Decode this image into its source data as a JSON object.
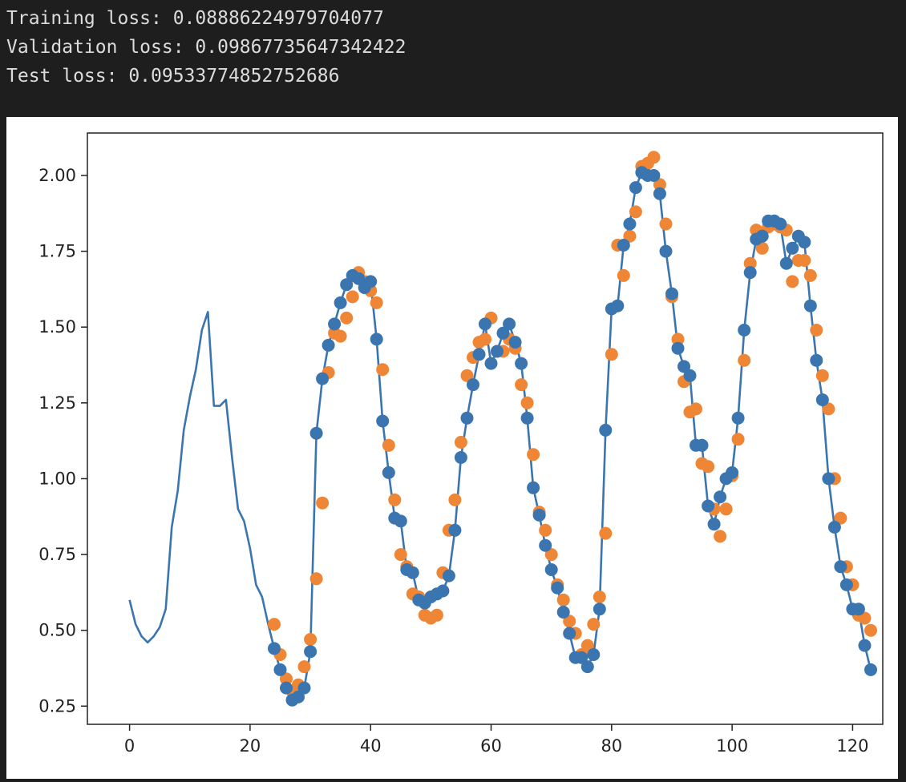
{
  "console": {
    "lines": [
      "Training loss: 0.08886224979704077",
      "Validation loss: 0.09867735647342422",
      "Test loss: 0.09533774852752686"
    ]
  },
  "chart_data": {
    "type": "line",
    "title": "",
    "xlabel": "",
    "ylabel": "",
    "xlim": [
      -7,
      125
    ],
    "ylim": [
      0.19,
      2.14
    ],
    "xticks": [
      0,
      20,
      40,
      60,
      80,
      100,
      120
    ],
    "yticks": [
      0.25,
      0.5,
      0.75,
      1.0,
      1.25,
      1.5,
      1.75,
      2.0
    ],
    "ytick_labels": [
      "0.25",
      "0.50",
      "0.75",
      "1.00",
      "1.25",
      "1.50",
      "1.75",
      "2.00"
    ],
    "grid": false,
    "colors": {
      "blue": "#3b75af",
      "orange": "#ef8636"
    },
    "series": [
      {
        "type": "line",
        "color": "#3b75af",
        "x": [
          0,
          1,
          2,
          3,
          4,
          5,
          6,
          7,
          8,
          9,
          10,
          11,
          12,
          13,
          14,
          15,
          16,
          17,
          18,
          19,
          20,
          21,
          22,
          23,
          24,
          25,
          26,
          27,
          28,
          29,
          30,
          31,
          32,
          33,
          34,
          35,
          36,
          37,
          38,
          39,
          40,
          41,
          42,
          43,
          44,
          45,
          46,
          47,
          48,
          49,
          50,
          51,
          52,
          53,
          54,
          55,
          56,
          57,
          58,
          59,
          60,
          61,
          62,
          63,
          64,
          65,
          66,
          67,
          68,
          69,
          70,
          71,
          72,
          73,
          74,
          75,
          76,
          77,
          78,
          79,
          80,
          81,
          82,
          83,
          84,
          85,
          86,
          87,
          88,
          89,
          90,
          91,
          92,
          93,
          94,
          95,
          96,
          97,
          98,
          99,
          100,
          101,
          102,
          103,
          104,
          105,
          106,
          107,
          108,
          109,
          110,
          111,
          112,
          113,
          114,
          115,
          116,
          117,
          118,
          119,
          120,
          121,
          122,
          123
        ],
        "y": [
          0.6,
          0.52,
          0.48,
          0.46,
          0.48,
          0.51,
          0.57,
          0.84,
          0.96,
          1.16,
          1.27,
          1.36,
          1.49,
          1.55,
          1.24,
          1.24,
          1.26,
          1.07,
          0.9,
          0.86,
          0.77,
          0.65,
          0.61,
          0.52,
          0.44,
          0.37,
          0.31,
          0.27,
          0.28,
          0.31,
          0.43,
          1.15,
          1.33,
          1.44,
          1.51,
          1.58,
          1.64,
          1.67,
          1.66,
          1.63,
          1.65,
          1.46,
          1.19,
          1.02,
          0.87,
          0.86,
          0.7,
          0.69,
          0.6,
          0.59,
          0.61,
          0.62,
          0.63,
          0.68,
          0.83,
          1.07,
          1.2,
          1.31,
          1.41,
          1.51,
          1.38,
          1.42,
          1.48,
          1.51,
          1.45,
          1.38,
          1.2,
          0.97,
          0.88,
          0.78,
          0.7,
          0.64,
          0.56,
          0.49,
          0.41,
          0.41,
          0.38,
          0.42,
          0.57,
          1.16,
          1.56,
          1.57,
          1.77,
          1.84,
          1.96,
          2.01,
          2.0,
          2.0,
          1.94,
          1.75,
          1.61,
          1.43,
          1.37,
          1.34,
          1.11,
          1.11,
          0.91,
          0.85,
          0.94,
          1.0,
          1.02,
          1.2,
          1.49,
          1.68,
          1.79,
          1.8,
          1.85,
          1.85,
          1.84,
          1.71,
          1.76,
          1.8,
          1.78,
          1.57,
          1.39,
          1.26,
          1.0,
          0.84,
          0.71,
          0.65,
          0.57,
          0.57,
          0.45,
          0.37
        ]
      },
      {
        "type": "scatter",
        "color": "#ef8636",
        "x": [
          24,
          25,
          26,
          27,
          28,
          29,
          30,
          31,
          32,
          33,
          34,
          35,
          36,
          37,
          38,
          39,
          40,
          41,
          42,
          43,
          44,
          45,
          46,
          47,
          48,
          49,
          50,
          51,
          52,
          53,
          54,
          55,
          56,
          57,
          58,
          59,
          60,
          61,
          62,
          63,
          64,
          65,
          66,
          67,
          68,
          69,
          70,
          71,
          72,
          73,
          74,
          75,
          76,
          77,
          78,
          79,
          80,
          81,
          82,
          83,
          84,
          85,
          86,
          87,
          88,
          89,
          90,
          91,
          92,
          93,
          94,
          95,
          96,
          97,
          98,
          99,
          100,
          101,
          102,
          103,
          104,
          105,
          106,
          107,
          108,
          109,
          110,
          111,
          112,
          113,
          114,
          115,
          116,
          117,
          118,
          119,
          120,
          121,
          122,
          123
        ],
        "y": [
          0.52,
          0.42,
          0.34,
          0.3,
          0.32,
          0.38,
          0.47,
          0.67,
          0.92,
          1.35,
          1.48,
          1.47,
          1.53,
          1.6,
          1.68,
          1.65,
          1.62,
          1.58,
          1.36,
          1.11,
          0.93,
          0.75,
          0.71,
          0.62,
          0.61,
          0.55,
          0.54,
          0.55,
          0.69,
          0.83,
          0.93,
          1.12,
          1.34,
          1.4,
          1.45,
          1.46,
          1.53,
          1.42,
          1.42,
          1.46,
          1.43,
          1.31,
          1.25,
          1.08,
          0.89,
          0.83,
          0.75,
          0.65,
          0.6,
          0.53,
          0.49,
          0.42,
          0.45,
          0.52,
          0.61,
          0.82,
          1.41,
          1.77,
          1.67,
          1.8,
          1.88,
          2.03,
          2.04,
          2.06,
          1.97,
          1.84,
          1.6,
          1.46,
          1.32,
          1.22,
          1.23,
          1.05,
          1.04,
          0.9,
          0.81,
          0.9,
          1.01,
          1.13,
          1.39,
          1.71,
          1.82,
          1.76,
          1.83,
          1.84,
          1.83,
          1.82,
          1.65,
          1.72,
          1.72,
          1.67,
          1.49,
          1.34,
          1.23,
          1.0,
          0.87,
          0.71,
          0.65,
          0.55,
          0.54,
          0.5
        ]
      },
      {
        "type": "scatter",
        "color": "#3b75af",
        "x": [
          24,
          25,
          26,
          27,
          28,
          29,
          30,
          31,
          32,
          33,
          34,
          35,
          36,
          37,
          38,
          39,
          40,
          41,
          42,
          43,
          44,
          45,
          46,
          47,
          48,
          49,
          50,
          51,
          52,
          53,
          54,
          55,
          56,
          57,
          58,
          59,
          60,
          61,
          62,
          63,
          64,
          65,
          66,
          67,
          68,
          69,
          70,
          71,
          72,
          73,
          74,
          75,
          76,
          77,
          78,
          79,
          80,
          81,
          82,
          83,
          84,
          85,
          86,
          87,
          88,
          89,
          90,
          91,
          92,
          93,
          94,
          95,
          96,
          97,
          98,
          99,
          100,
          101,
          102,
          103,
          104,
          105,
          106,
          107,
          108,
          109,
          110,
          111,
          112,
          113,
          114,
          115,
          116,
          117,
          118,
          119,
          120,
          121,
          122,
          123
        ],
        "y": [
          0.44,
          0.37,
          0.31,
          0.27,
          0.28,
          0.31,
          0.43,
          1.15,
          1.33,
          1.44,
          1.51,
          1.58,
          1.64,
          1.67,
          1.66,
          1.63,
          1.65,
          1.46,
          1.19,
          1.02,
          0.87,
          0.86,
          0.7,
          0.69,
          0.6,
          0.59,
          0.61,
          0.62,
          0.63,
          0.68,
          0.83,
          1.07,
          1.2,
          1.31,
          1.41,
          1.51,
          1.38,
          1.42,
          1.48,
          1.51,
          1.45,
          1.38,
          1.2,
          0.97,
          0.88,
          0.78,
          0.7,
          0.64,
          0.56,
          0.49,
          0.41,
          0.41,
          0.38,
          0.42,
          0.57,
          1.16,
          1.56,
          1.57,
          1.77,
          1.84,
          1.96,
          2.01,
          2.0,
          2.0,
          1.94,
          1.75,
          1.61,
          1.43,
          1.37,
          1.34,
          1.11,
          1.11,
          0.91,
          0.85,
          0.94,
          1.0,
          1.02,
          1.2,
          1.49,
          1.68,
          1.79,
          1.8,
          1.85,
          1.85,
          1.84,
          1.71,
          1.76,
          1.8,
          1.78,
          1.57,
          1.39,
          1.26,
          1.0,
          0.84,
          0.71,
          0.65,
          0.57,
          0.57,
          0.45,
          0.37
        ]
      }
    ]
  }
}
